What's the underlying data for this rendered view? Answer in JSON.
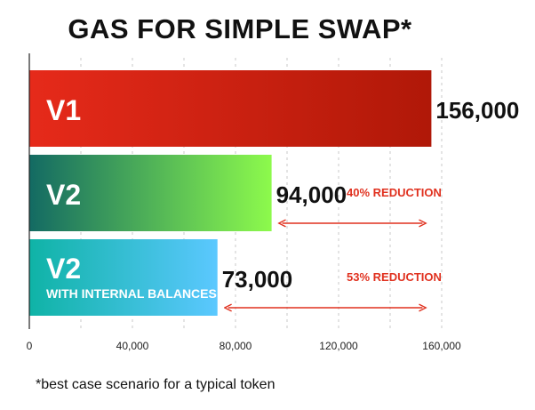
{
  "chart_data": {
    "type": "bar",
    "orientation": "horizontal",
    "title": "GAS FOR SIMPLE SWAP*",
    "categories": [
      "V1",
      "V2",
      "V2"
    ],
    "sublabels": [
      "",
      "",
      "WITH INTERNAL BALANCES"
    ],
    "values": [
      156000,
      94000,
      73000
    ],
    "value_labels": [
      "156,000",
      "94,000",
      "73,000"
    ],
    "xlim": [
      0,
      160000
    ],
    "xticks": [
      0,
      40000,
      80000,
      120000,
      160000
    ],
    "xtick_labels": [
      "0",
      "40,000",
      "80,000",
      "120,000",
      "160,000"
    ],
    "grid": "vertical dashed",
    "bar_gradients": [
      [
        "#e62a1a",
        "#b01808"
      ],
      [
        "#136a63",
        "#8dfa4c"
      ],
      [
        "#0fb3a6",
        "#5bc8ff"
      ]
    ],
    "annotations": [
      {
        "text": "40% REDUCTION",
        "bar": 1,
        "from": 94000,
        "to": 156000
      },
      {
        "text": "53% REDUCTION",
        "bar": 2,
        "from": 73000,
        "to": 156000
      }
    ],
    "annotation_color": "#e0311f",
    "footnote": "*best case scenario for a typical token"
  }
}
